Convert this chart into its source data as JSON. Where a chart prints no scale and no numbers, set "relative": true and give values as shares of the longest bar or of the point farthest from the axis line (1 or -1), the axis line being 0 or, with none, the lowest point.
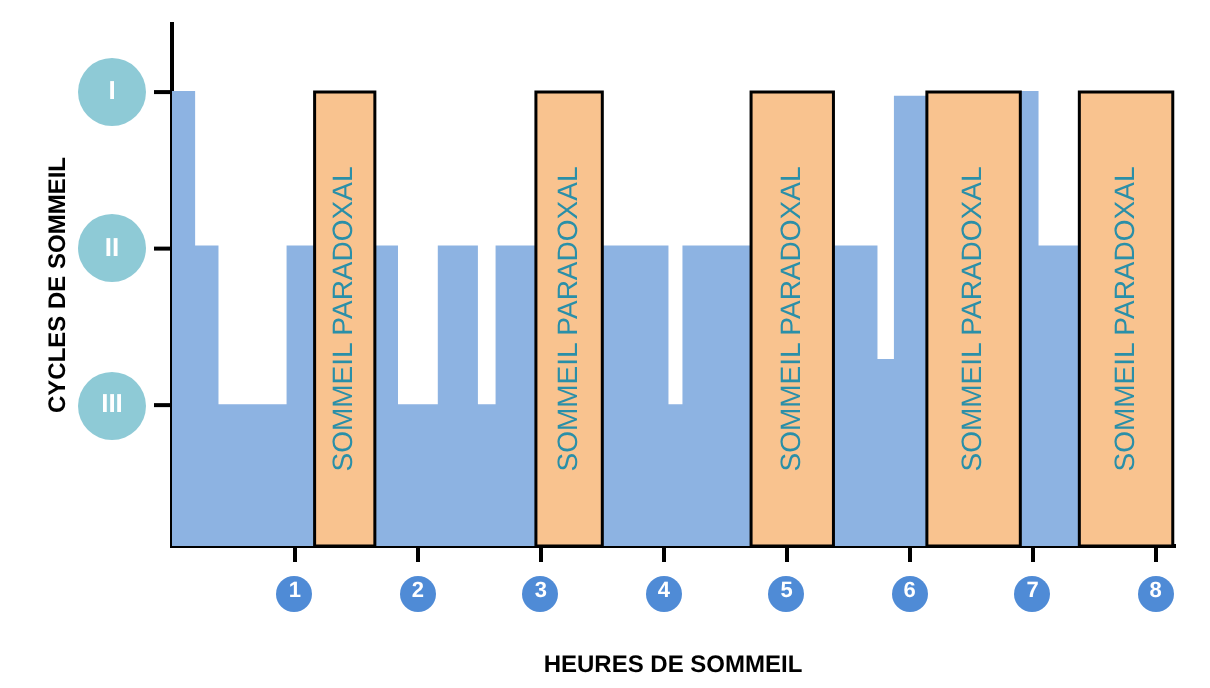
{
  "chart_data": {
    "type": "area",
    "xlabel": "HEURES DE SOMMEIL",
    "ylabel": "CYCLES DE SOMMEIL",
    "relative": true,
    "x": [
      0,
      0.18,
      0.18,
      0.37,
      0.37,
      0.94,
      0.94,
      1.16,
      1.4,
      1.65,
      1.83,
      1.83,
      2.17,
      2.17,
      2.48,
      2.48,
      2.64,
      2.64,
      2.96,
      3.2,
      3.5,
      4.03,
      4.03,
      4.16,
      4.16,
      4.71,
      5.0,
      5.38,
      5.73,
      5.73,
      5.88,
      5.88,
      6.14,
      6.5,
      6.9,
      7.04,
      7.04,
      7.38
    ],
    "series": [
      {
        "color": "#8db3e2",
        "values": [
          1,
          1,
          0.66,
          0.66,
          0.31,
          0.31,
          0.66,
          0.66,
          null,
          0.66,
          0.66,
          0.31,
          0.31,
          0.66,
          0.66,
          0.31,
          0.31,
          0.66,
          0.66,
          null,
          0.66,
          0.66,
          0.31,
          0.31,
          0.66,
          0.66,
          null,
          0.66,
          0.66,
          0.41,
          0.41,
          0.99,
          0.99,
          null,
          1,
          1,
          0.66,
          0.66
        ]
      }
    ],
    "xlim": [
      0,
      8.15
    ],
    "xticks": [
      1,
      2,
      3,
      4,
      5,
      6,
      7,
      8
    ],
    "annotations": [
      "I",
      "II",
      "III"
    ],
    "bands": [
      {
        "axis": "x",
        "from": 1.16,
        "to": 1.65,
        "label": "SOMMEIL PARADOXAL",
        "color": "#f9c38f"
      },
      {
        "axis": "x",
        "from": 2.96,
        "to": 3.5,
        "label": "SOMMEIL PARADOXAL",
        "color": "#f9c38f"
      },
      {
        "axis": "x",
        "from": 4.71,
        "to": 5.38,
        "label": "SOMMEIL PARADOXAL",
        "color": "#f9c38f"
      },
      {
        "axis": "x",
        "from": 6.14,
        "to": 6.9,
        "label": "SOMMEIL PARADOXAL",
        "color": "#f9c38f"
      },
      {
        "axis": "x",
        "from": 7.38,
        "to": 8.14,
        "label": "SOMMEIL PARADOXAL",
        "color": "#f9c38f"
      }
    ],
    "grid": false,
    "legend": false,
    "marker": "none"
  }
}
